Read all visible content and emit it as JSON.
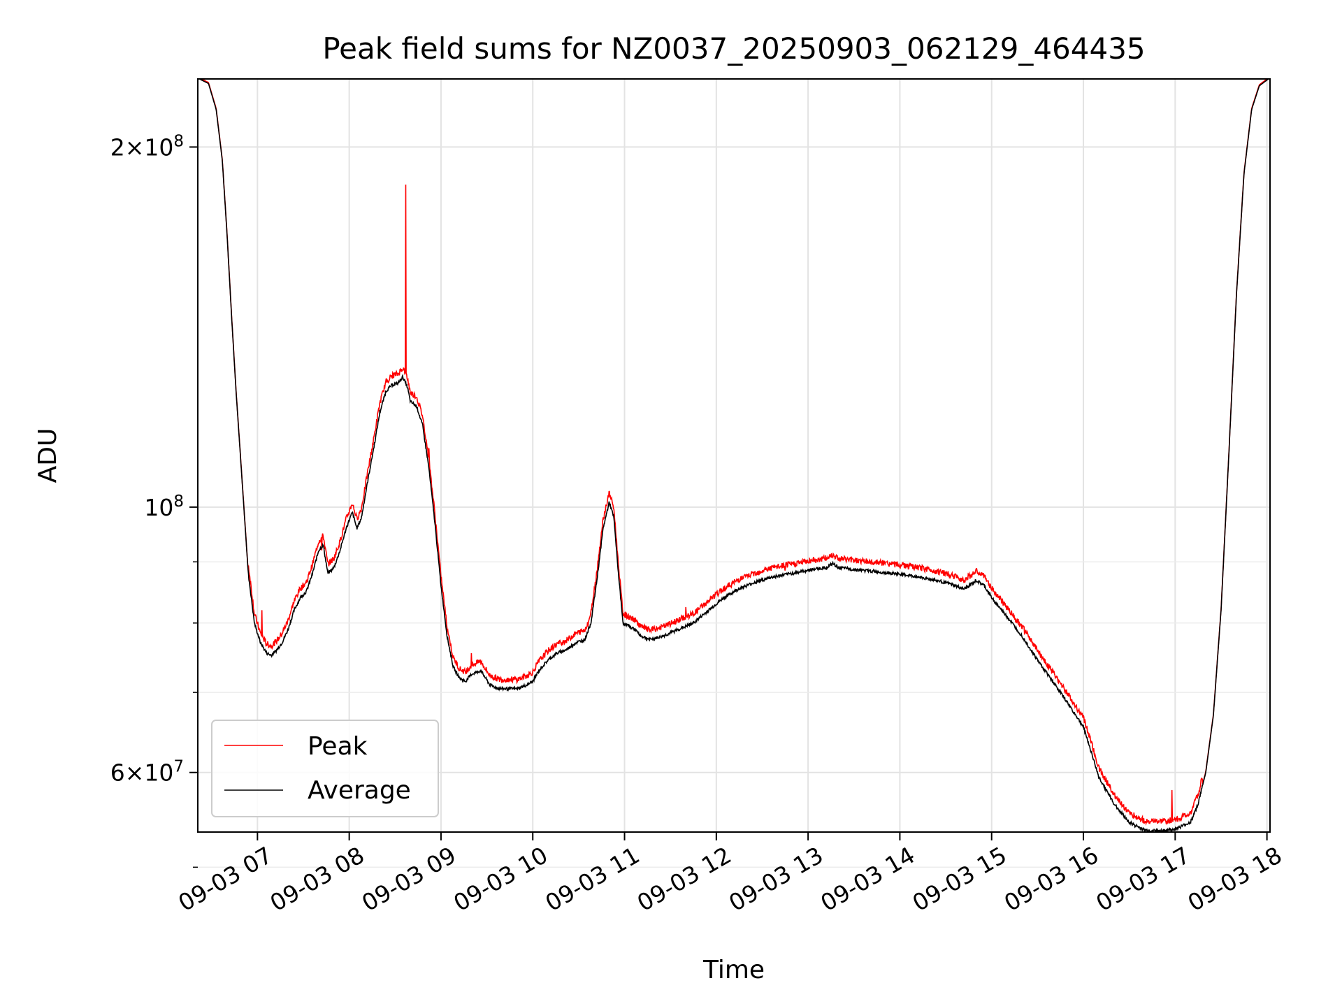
{
  "chart_data": {
    "type": "line",
    "title": "Peak field sums for NZ0037_20250903_062129_464435",
    "xlabel": "Time",
    "ylabel": "ADU",
    "y_scale": "log",
    "grid": true,
    "legend_placement": "lower-left",
    "x_range": [
      "2025-09-03 06:21",
      "2025-09-03 18:02"
    ],
    "y_range": [
      53500000,
      228000000
    ],
    "x_ticks": [
      "09-03 07",
      "09-03 08",
      "09-03 09",
      "09-03 10",
      "09-03 11",
      "09-03 12",
      "09-03 13",
      "09-03 14",
      "09-03 15",
      "09-03 16",
      "09-03 17",
      "09-03 18"
    ],
    "y_ticks_major": [
      {
        "value": 200000000,
        "mantissa": "2",
        "exp": "8"
      },
      {
        "value": 100000000,
        "mantissa": "",
        "exp": "8"
      },
      {
        "value": 60000000,
        "mantissa": "6",
        "exp": "7"
      }
    ],
    "y_ticks_minor": [
      50000000,
      70000000,
      80000000,
      90000000
    ],
    "series": [
      {
        "name": "Average",
        "color": "#000000",
        "points": [
          [
            "06:22",
            228000000
          ],
          [
            "06:28",
            226000000
          ],
          [
            "06:33",
            215000000
          ],
          [
            "06:37",
            195000000
          ],
          [
            "06:40",
            170000000
          ],
          [
            "06:43",
            145000000
          ],
          [
            "06:46",
            125000000
          ],
          [
            "06:50",
            105000000
          ],
          [
            "06:54",
            88000000
          ],
          [
            "06:58",
            80000000
          ],
          [
            "07:02",
            77000000
          ],
          [
            "07:06",
            75500000
          ],
          [
            "07:09",
            75200000
          ],
          [
            "07:12",
            75800000
          ],
          [
            "07:16",
            77000000
          ],
          [
            "07:20",
            79000000
          ],
          [
            "07:24",
            82000000
          ],
          [
            "07:28",
            84000000
          ],
          [
            "07:32",
            85000000
          ],
          [
            "07:36",
            88000000
          ],
          [
            "07:40",
            92000000
          ],
          [
            "07:43",
            93000000
          ],
          [
            "07:46",
            88000000
          ],
          [
            "07:50",
            89000000
          ],
          [
            "07:54",
            92000000
          ],
          [
            "07:58",
            96000000
          ],
          [
            "08:02",
            99000000
          ],
          [
            "08:05",
            96000000
          ],
          [
            "08:08",
            98000000
          ],
          [
            "08:12",
            105000000
          ],
          [
            "08:16",
            112000000
          ],
          [
            "08:20",
            120000000
          ],
          [
            "08:24",
            125000000
          ],
          [
            "08:28",
            126500000
          ],
          [
            "08:32",
            127000000
          ],
          [
            "08:35",
            128500000
          ],
          [
            "08:38",
            126000000
          ],
          [
            "08:40",
            122500000
          ],
          [
            "08:44",
            121500000
          ],
          [
            "08:48",
            117000000
          ],
          [
            "08:52",
            108000000
          ],
          [
            "08:56",
            97000000
          ],
          [
            "09:00",
            86000000
          ],
          [
            "09:04",
            78000000
          ],
          [
            "09:08",
            73500000
          ],
          [
            "09:12",
            72000000
          ],
          [
            "09:16",
            71500000
          ],
          [
            "09:20",
            72500000
          ],
          [
            "09:26",
            73000000
          ],
          [
            "09:32",
            71000000
          ],
          [
            "09:38",
            70500000
          ],
          [
            "09:44",
            70500000
          ],
          [
            "09:50",
            70500000
          ],
          [
            "09:56",
            71000000
          ],
          [
            "10:00",
            71500000
          ],
          [
            "10:04",
            73000000
          ],
          [
            "10:10",
            74500000
          ],
          [
            "10:16",
            75500000
          ],
          [
            "10:22",
            76000000
          ],
          [
            "10:28",
            77000000
          ],
          [
            "10:34",
            77500000
          ],
          [
            "10:38",
            80000000
          ],
          [
            "10:42",
            87000000
          ],
          [
            "10:46",
            96000000
          ],
          [
            "10:50",
            101000000
          ],
          [
            "10:53",
            98000000
          ],
          [
            "10:56",
            88000000
          ],
          [
            "10:59",
            80000000
          ],
          [
            "11:03",
            79500000
          ],
          [
            "11:07",
            79000000
          ],
          [
            "11:11",
            78000000
          ],
          [
            "11:17",
            77500000
          ],
          [
            "11:25",
            78000000
          ],
          [
            "11:35",
            79000000
          ],
          [
            "11:45",
            80000000
          ],
          [
            "11:55",
            82000000
          ],
          [
            "12:05",
            84000000
          ],
          [
            "12:15",
            85500000
          ],
          [
            "12:25",
            86500000
          ],
          [
            "12:35",
            87300000
          ],
          [
            "12:45",
            87800000
          ],
          [
            "12:55",
            88300000
          ],
          [
            "13:05",
            88800000
          ],
          [
            "13:12",
            89000000
          ],
          [
            "13:16",
            89700000
          ],
          [
            "13:20",
            89000000
          ],
          [
            "13:30",
            88700000
          ],
          [
            "13:45",
            88300000
          ],
          [
            "14:00",
            87900000
          ],
          [
            "14:15",
            87300000
          ],
          [
            "14:30",
            86500000
          ],
          [
            "14:42",
            85400000
          ],
          [
            "14:50",
            86800000
          ],
          [
            "14:55",
            86000000
          ],
          [
            "15:00",
            84000000
          ],
          [
            "15:10",
            81000000
          ],
          [
            "15:20",
            78000000
          ],
          [
            "15:30",
            74500000
          ],
          [
            "15:40",
            71500000
          ],
          [
            "15:50",
            68500000
          ],
          [
            "16:00",
            65500000
          ],
          [
            "16:05",
            62500000
          ],
          [
            "16:10",
            59500000
          ],
          [
            "16:20",
            56500000
          ],
          [
            "16:30",
            54500000
          ],
          [
            "16:40",
            53700000
          ],
          [
            "16:50",
            53600000
          ],
          [
            "17:00",
            53800000
          ],
          [
            "17:10",
            54500000
          ],
          [
            "17:15",
            56500000
          ],
          [
            "17:20",
            60000000
          ],
          [
            "17:25",
            67000000
          ],
          [
            "17:30",
            82000000
          ],
          [
            "17:35",
            110000000
          ],
          [
            "17:40",
            150000000
          ],
          [
            "17:45",
            190000000
          ],
          [
            "17:50",
            215000000
          ],
          [
            "17:55",
            225000000
          ],
          [
            "18:01",
            228000000
          ]
        ]
      },
      {
        "name": "Peak",
        "color": "#ff0000",
        "offset_ratio": 1.012,
        "spikes": [
          {
            "x": "07:03",
            "y": 82000000
          },
          {
            "x": "07:42",
            "y": 92000000
          },
          {
            "x": "08:37",
            "y": 186000000
          },
          {
            "x": "08:52",
            "y": 112000000
          },
          {
            "x": "09:20",
            "y": 75500000
          },
          {
            "x": "10:36",
            "y": 79500000
          },
          {
            "x": "11:40",
            "y": 82500000
          },
          {
            "x": "12:45",
            "y": 88500000
          },
          {
            "x": "13:05",
            "y": 89800000
          },
          {
            "x": "14:00",
            "y": 89000000
          },
          {
            "x": "16:00",
            "y": 67000000
          },
          {
            "x": "16:58",
            "y": 58000000
          }
        ]
      }
    ]
  }
}
